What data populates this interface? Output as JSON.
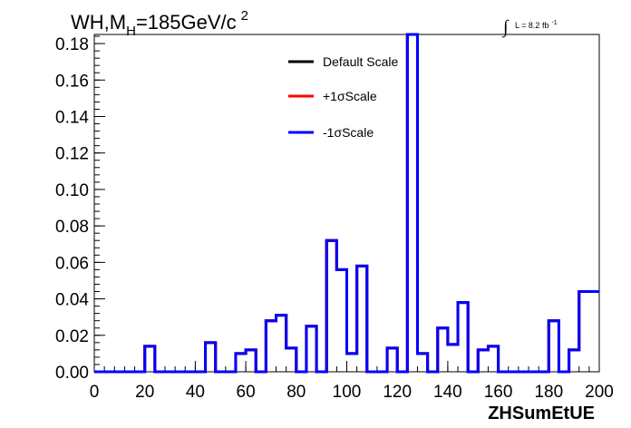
{
  "chart_data": {
    "type": "line",
    "title": {
      "main": "WH,M",
      "sub": "H",
      "rest": "=185GeV/c",
      "sup": "2"
    },
    "lumi": {
      "integral": "∫",
      "text": "L = 8.2 fb",
      "sup": "-1"
    },
    "xlabel": "ZHSumEtUE",
    "ylabel": "",
    "xlim": [
      0,
      200
    ],
    "ylim": [
      0,
      0.185
    ],
    "x_ticks": [
      "0",
      "20",
      "40",
      "60",
      "80",
      "100",
      "120",
      "140",
      "160",
      "180",
      "200"
    ],
    "y_ticks": [
      "0.00",
      "0.02",
      "0.04",
      "0.06",
      "0.08",
      "0.10",
      "0.12",
      "0.14",
      "0.16",
      "0.18"
    ],
    "bin_width": 4,
    "legend_position": "top-center",
    "grid": false,
    "series": [
      {
        "name": "Default Scale",
        "color": "#000000",
        "values": [
          0,
          0,
          0,
          0,
          0,
          0.014,
          0,
          0,
          0,
          0,
          0,
          0.016,
          0,
          0,
          0.01,
          0.012,
          0,
          0.028,
          0.031,
          0.013,
          0,
          0.025,
          0,
          0.072,
          0.056,
          0.01,
          0.058,
          0,
          0,
          0.013,
          0,
          0.185,
          0.01,
          0,
          0.024,
          0.015,
          0.038,
          0,
          0.012,
          0.014,
          0,
          0,
          0,
          0,
          0,
          0.028,
          0,
          0.012,
          0.044,
          0.044
        ]
      },
      {
        "name": "+1σScale",
        "color": "#ff0000",
        "values": [
          0,
          0,
          0,
          0,
          0,
          0.014,
          0,
          0,
          0,
          0,
          0,
          0.016,
          0,
          0,
          0.01,
          0.012,
          0,
          0.028,
          0.031,
          0.013,
          0,
          0.025,
          0,
          0.072,
          0.056,
          0.01,
          0.058,
          0,
          0,
          0.013,
          0,
          0.185,
          0.01,
          0,
          0.024,
          0.015,
          0.038,
          0,
          0.012,
          0.014,
          0,
          0,
          0,
          0,
          0,
          0.028,
          0,
          0.012,
          0.044,
          0.044
        ]
      },
      {
        "name": "-1σScale",
        "color": "#0000ff",
        "values": [
          0,
          0,
          0,
          0,
          0,
          0.014,
          0,
          0,
          0,
          0,
          0,
          0.016,
          0,
          0,
          0.01,
          0.012,
          0,
          0.028,
          0.031,
          0.013,
          0,
          0.025,
          0,
          0.072,
          0.056,
          0.01,
          0.058,
          0,
          0,
          0.013,
          0,
          0.185,
          0.01,
          0,
          0.024,
          0.015,
          0.038,
          0,
          0.012,
          0.014,
          0,
          0,
          0,
          0,
          0,
          0.028,
          0,
          0.012,
          0.044,
          0.044
        ]
      }
    ]
  }
}
